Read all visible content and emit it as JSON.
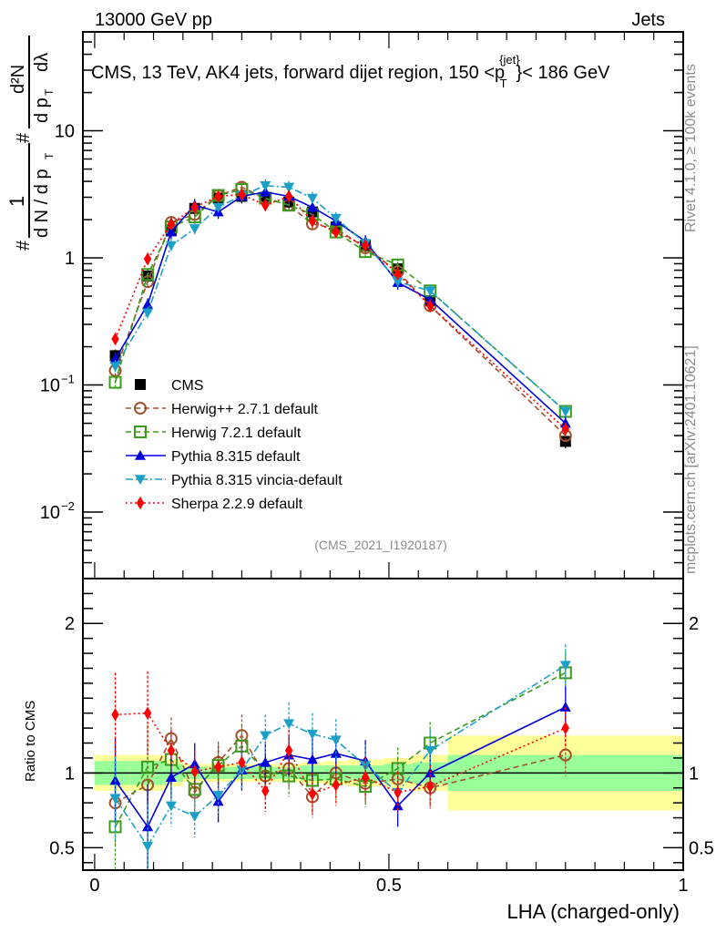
{
  "header": {
    "left": "13000 GeV pp",
    "right": "Jets"
  },
  "side_labels": {
    "rivet": "Rivet 4.1.0, ≥ 100k events",
    "mcplots": "mcplots.cern.ch [arXiv:2401.10621]"
  },
  "chart_data": [
    {
      "type": "line",
      "title": "CMS, 13 TeV, AK4 jets, forward dijet region, 150 < p_T^{jet} < 186 GeV",
      "title_parts": {
        "main": "CMS, 13 TeV, AK4 jets, forward dijet region, 150 <p",
        "sup": "{jet}",
        "sub": "T",
        "tail": "}< 186 GeV"
      },
      "ylabel": "1/dN/dp_T  d²N/(dp_T dλ)",
      "ylabel_parts": {
        "num1": "1",
        "den1": "d N / d p",
        "den1_sub": "T",
        "num2": "d²N",
        "den2": "d p",
        "den2_sub": "T",
        "den2_tail": "dλ",
        "hash": "#"
      },
      "yscale": "log",
      "ylim": [
        0.003,
        60
      ],
      "ytick_labels": [
        {
          "value": 10,
          "label": "10",
          "exp": ""
        },
        {
          "value": 1,
          "label": "1",
          "exp": ""
        },
        {
          "value": 0.1,
          "label": "10",
          "exp": "−1"
        },
        {
          "value": 0.01,
          "label": "10",
          "exp": "−2"
        }
      ],
      "xlim": [
        -0.02,
        1.0
      ],
      "x": [
        0.035,
        0.09,
        0.13,
        0.17,
        0.21,
        0.25,
        0.29,
        0.33,
        0.37,
        0.41,
        0.46,
        0.515,
        0.57,
        0.8
      ],
      "reference": "(CMS_2021_I1920187)",
      "legend_position": "bottom-left",
      "series": [
        {
          "name": "CMS",
          "color": "#000000",
          "marker": "square-filled",
          "line": "none",
          "values": [
            0.17,
            0.72,
            1.65,
            2.45,
            2.95,
            3.05,
            3.0,
            2.75,
            2.3,
            1.75,
            1.25,
            0.82,
            0.46,
            0.036
          ]
        },
        {
          "name": "Herwig++ 2.7.1 default",
          "color": "#a0522d",
          "marker": "circle-open",
          "line": "dashed",
          "values": [
            0.13,
            0.65,
            1.9,
            2.2,
            3.1,
            3.6,
            2.95,
            2.6,
            1.85,
            1.7,
            1.2,
            0.78,
            0.42,
            0.04
          ]
        },
        {
          "name": "Herwig 7.2.1 default",
          "color": "#3a9a1a",
          "marker": "square-open",
          "line": "dashed",
          "values": [
            0.105,
            0.74,
            1.75,
            2.1,
            3.1,
            3.45,
            2.95,
            2.6,
            2.2,
            1.6,
            1.12,
            0.88,
            0.55,
            0.062
          ]
        },
        {
          "name": "Pythia 8.315 default",
          "color": "#0000dd",
          "marker": "triangle-up-filled",
          "line": "solid",
          "values": [
            0.16,
            0.43,
            1.6,
            2.6,
            2.3,
            3.05,
            3.3,
            3.05,
            2.5,
            1.95,
            1.35,
            0.64,
            0.47,
            0.05
          ]
        },
        {
          "name": "Pythia 8.315 vincia-default",
          "color": "#1aa0c8",
          "marker": "triangle-down-filled",
          "line": "dashdot",
          "values": [
            0.14,
            0.37,
            1.25,
            1.7,
            2.5,
            3.1,
            3.7,
            3.6,
            2.95,
            2.05,
            1.3,
            0.65,
            0.55,
            0.062
          ]
        },
        {
          "name": "Sherpa 2.2.9 default",
          "color": "#ff0000",
          "marker": "diamond-filled",
          "line": "dotted",
          "values": [
            0.23,
            0.98,
            1.85,
            2.5,
            3.05,
            3.15,
            2.6,
            3.05,
            1.95,
            1.6,
            1.25,
            0.75,
            0.42,
            0.045
          ]
        }
      ]
    },
    {
      "type": "line",
      "title": "",
      "xlabel": "LHA (charged-only)",
      "ylabel": "Ratio to CMS",
      "yscale": "linear",
      "ylim": [
        0.35,
        2.3
      ],
      "xlim": [
        -0.02,
        1.0
      ],
      "ytick_labels": [
        {
          "value": 2,
          "label": "2"
        },
        {
          "value": 1,
          "label": "1"
        },
        {
          "value": 0.5,
          "label": "0.5"
        }
      ],
      "xtick_labels": [
        {
          "value": 0,
          "label": "0"
        },
        {
          "value": 0.5,
          "label": "0.5"
        },
        {
          "value": 1,
          "label": "1"
        }
      ],
      "x": [
        0.035,
        0.09,
        0.13,
        0.17,
        0.21,
        0.25,
        0.29,
        0.33,
        0.37,
        0.41,
        0.46,
        0.515,
        0.57,
        0.8
      ],
      "bands": {
        "bin_edges": [
          0.0,
          0.06,
          0.12,
          0.15,
          0.19,
          0.23,
          0.27,
          0.31,
          0.35,
          0.39,
          0.43,
          0.49,
          0.54,
          0.6,
          1.0
        ],
        "green_halfwidth": [
          0.08,
          0.08,
          0.06,
          0.04,
          0.04,
          0.04,
          0.04,
          0.04,
          0.05,
          0.05,
          0.05,
          0.06,
          0.07,
          0.12
        ],
        "yellow_halfwidth": [
          0.12,
          0.12,
          0.09,
          0.06,
          0.06,
          0.06,
          0.06,
          0.06,
          0.07,
          0.08,
          0.09,
          0.1,
          0.12,
          0.25
        ],
        "green_color": "#99ff99",
        "yellow_color": "#ffff99"
      },
      "series": [
        {
          "name": "Herwig++ 2.7.1 default",
          "color": "#a0522d",
          "marker": "circle-open",
          "line": "dashed",
          "values": [
            0.8,
            0.92,
            1.23,
            0.87,
            1.07,
            1.25,
            0.98,
            1.03,
            0.84,
            1.0,
            0.93,
            0.96,
            0.9,
            1.12
          ]
        },
        {
          "name": "Herwig 7.2.1 default",
          "color": "#3a9a1a",
          "marker": "square-open",
          "line": "dashed",
          "values": [
            0.64,
            1.04,
            1.09,
            0.89,
            1.05,
            1.18,
            1.01,
            0.98,
            0.95,
            0.96,
            0.91,
            1.03,
            1.2,
            1.67
          ]
        },
        {
          "name": "Pythia 8.315 default",
          "color": "#0000dd",
          "marker": "triangle-up-filled",
          "line": "solid",
          "values": [
            0.95,
            0.64,
            0.97,
            1.06,
            0.81,
            1.02,
            1.07,
            1.12,
            1.09,
            1.13,
            1.08,
            0.78,
            1.0,
            1.44
          ]
        },
        {
          "name": "Pythia 8.315 vincia-default",
          "color": "#1aa0c8",
          "marker": "triangle-down-filled",
          "line": "dashdot",
          "values": [
            0.83,
            0.51,
            0.78,
            0.71,
            0.85,
            1.02,
            1.25,
            1.33,
            1.26,
            1.22,
            1.05,
            0.87,
            1.15,
            1.72
          ]
        },
        {
          "name": "Sherpa 2.2.9 default",
          "color": "#ff0000",
          "marker": "diamond-filled",
          "line": "dotted",
          "values": [
            1.39,
            1.4,
            1.15,
            1.01,
            1.04,
            1.07,
            0.88,
            1.15,
            0.86,
            0.92,
            0.97,
            0.87,
            0.91,
            1.3
          ]
        }
      ]
    }
  ]
}
